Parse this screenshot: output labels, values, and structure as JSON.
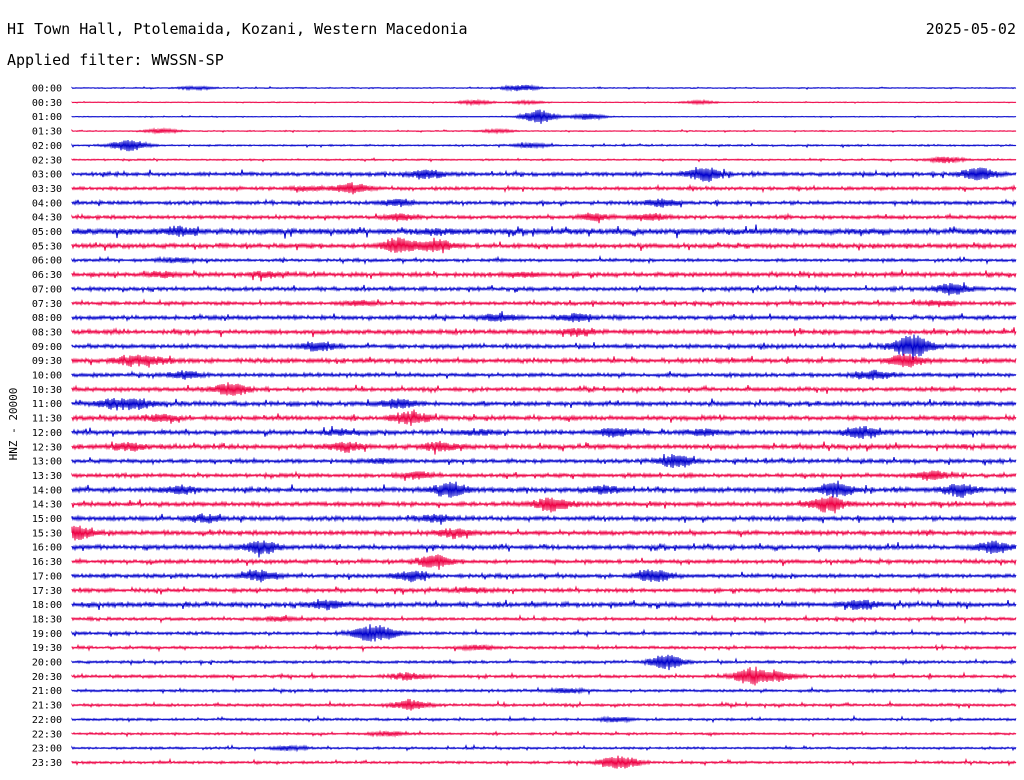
{
  "header": {
    "title": "HI Town Hall, Ptolemaida, Kozani, Western Macedonia",
    "date": "2025-05-02",
    "filter": "Applied filter: WWSSN-SP"
  },
  "chart_data": {
    "type": "line",
    "ylabel": "HNZ - 20000",
    "colors": [
      "#0000cc",
      "#ee0044"
    ],
    "rows": [
      "00:00",
      "00:30",
      "01:00",
      "01:30",
      "02:00",
      "02:30",
      "03:00",
      "03:30",
      "04:00",
      "04:30",
      "05:00",
      "05:30",
      "06:00",
      "06:30",
      "07:00",
      "07:30",
      "08:00",
      "08:30",
      "09:00",
      "09:30",
      "10:00",
      "10:30",
      "11:00",
      "11:30",
      "12:00",
      "12:30",
      "13:00",
      "13:30",
      "14:00",
      "14:30",
      "15:00",
      "15:30",
      "16:00",
      "16:30",
      "17:00",
      "17:30",
      "18:00",
      "18:30",
      "19:00",
      "19:30",
      "20:00",
      "20:30",
      "21:00",
      "21:30",
      "22:00",
      "22:30",
      "23:00",
      "23:30"
    ],
    "noise": [
      0.4,
      0.3,
      0.3,
      0.4,
      0.6,
      0.6,
      1.4,
      1.2,
      1.3,
      1.3,
      2.2,
      1.6,
      1.1,
      1.6,
      1.4,
      1.3,
      1.5,
      1.6,
      1.5,
      1.6,
      1.4,
      1.4,
      1.6,
      1.6,
      1.6,
      1.7,
      1.4,
      1.4,
      1.7,
      1.6,
      1.6,
      1.6,
      1.6,
      1.4,
      1.4,
      1.4,
      1.7,
      1.1,
      1.1,
      1.0,
      1.0,
      1.1,
      1.0,
      1.0,
      0.9,
      0.8,
      0.8,
      0.9
    ],
    "events": [
      [
        [
          13.2,
          1.5
        ],
        [
          47.5,
          3
        ]
      ],
      [
        [
          42.7,
          2
        ],
        [
          48.3,
          1.5
        ],
        [
          66.5,
          1.5
        ]
      ],
      [
        [
          49.5,
          7
        ],
        [
          54.6,
          3
        ]
      ],
      [
        [
          9.5,
          2
        ],
        [
          45,
          1.5
        ]
      ],
      [
        [
          6,
          6
        ],
        [
          48.6,
          2
        ]
      ],
      [
        [
          92.5,
          3
        ]
      ],
      [
        [
          37.5,
          4
        ],
        [
          67,
          7
        ],
        [
          96,
          6
        ]
      ],
      [
        [
          29.5,
          5
        ],
        [
          24.8,
          2
        ]
      ],
      [
        [
          34.5,
          3
        ],
        [
          62.5,
          3
        ]
      ],
      [
        [
          34.8,
          3
        ],
        [
          55.2,
          3
        ],
        [
          61,
          3
        ]
      ],
      [
        [
          11.5,
          3
        ],
        [
          38.5,
          2
        ]
      ],
      [
        [
          34.5,
          7
        ],
        [
          38.5,
          6
        ]
      ],
      [
        [
          11,
          2
        ]
      ],
      [
        [
          9.5,
          2
        ],
        [
          20.5,
          2
        ],
        [
          47.7,
          2
        ]
      ],
      [
        [
          93.3,
          5
        ]
      ],
      [
        [
          30.5,
          2
        ],
        [
          92,
          2
        ]
      ],
      [
        [
          45.2,
          3
        ],
        [
          53.5,
          3
        ]
      ],
      [
        [
          53.4,
          3
        ]
      ],
      [
        [
          26.2,
          4
        ],
        [
          88.5,
          7
        ],
        [
          89.5,
          6
        ]
      ],
      [
        [
          6,
          4
        ],
        [
          8.8,
          3
        ],
        [
          88.4,
          6
        ]
      ],
      [
        [
          12,
          3
        ],
        [
          85,
          4
        ]
      ],
      [
        [
          16.8,
          6
        ]
      ],
      [
        [
          4.5,
          4
        ],
        [
          7,
          4
        ],
        [
          34.7,
          4
        ]
      ],
      [
        [
          9.4,
          3
        ],
        [
          35.5,
          3
        ],
        [
          36,
          3
        ]
      ],
      [
        [
          28.5,
          2
        ],
        [
          43,
          2
        ],
        [
          57.5,
          4
        ],
        [
          67,
          3
        ],
        [
          83.7,
          5
        ]
      ],
      [
        [
          6,
          3
        ],
        [
          29,
          4
        ],
        [
          39,
          4
        ]
      ],
      [
        [
          33,
          2
        ],
        [
          64,
          6
        ]
      ],
      [
        [
          36.5,
          3
        ],
        [
          91,
          4
        ]
      ],
      [
        [
          11.5,
          3
        ],
        [
          40,
          7
        ],
        [
          56.5,
          3
        ],
        [
          81,
          7
        ],
        [
          94,
          6
        ]
      ],
      [
        [
          50.5,
          4
        ],
        [
          51.5,
          3
        ],
        [
          80,
          7
        ]
      ],
      [
        [
          13.9,
          3
        ],
        [
          38.5,
          3
        ]
      ],
      [
        [
          0.5,
          7
        ],
        [
          40.5,
          4
        ]
      ],
      [
        [
          20,
          6
        ],
        [
          97.5,
          5
        ]
      ],
      [
        [
          38.3,
          6
        ]
      ],
      [
        [
          20,
          5
        ],
        [
          35.9,
          5
        ],
        [
          61.7,
          6
        ]
      ],
      [
        [
          42.4,
          2
        ]
      ],
      [
        [
          27,
          4
        ],
        [
          83.4,
          4
        ]
      ],
      [
        [
          22,
          2
        ]
      ],
      [
        [
          31.4,
          6
        ],
        [
          33.3,
          4
        ]
      ],
      [
        [
          43,
          2
        ]
      ],
      [
        [
          63,
          7
        ]
      ],
      [
        [
          35.5,
          3
        ],
        [
          71.9,
          8
        ],
        [
          75,
          4
        ]
      ],
      [
        [
          52.5,
          2
        ]
      ],
      [
        [
          35.9,
          5
        ]
      ],
      [
        [
          57.5,
          2
        ]
      ],
      [
        [
          33.5,
          2
        ]
      ],
      [
        [
          23,
          2
        ]
      ],
      [
        [
          57.2,
          3
        ],
        [
          58.6,
          4
        ]
      ]
    ]
  }
}
